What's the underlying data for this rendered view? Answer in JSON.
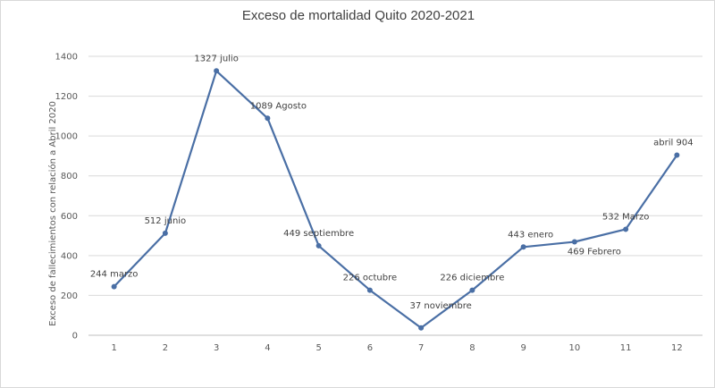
{
  "chart_data": {
    "type": "line",
    "title": "Exceso de mortalidad Quito 2020-2021",
    "xlabel": "",
    "ylabel": "Exceso de fallecimientos con relación a Abril 2020",
    "x": [
      1,
      2,
      3,
      4,
      5,
      6,
      7,
      8,
      9,
      10,
      11,
      12
    ],
    "ylim": [
      0,
      1400
    ],
    "yticks": [
      0,
      200,
      400,
      600,
      800,
      1000,
      1200,
      1400
    ],
    "grid": true,
    "legend": "none",
    "color": "#4a6fa5",
    "series": [
      {
        "values": [
          244,
          512,
          1327,
          1089,
          449,
          226,
          37,
          226,
          443,
          469,
          532,
          904
        ],
        "labels": [
          "244 marzo",
          "512  junio",
          "1327 julio",
          "1089 Agosto",
          "449 septiembre",
          "226 octubre",
          "37 noviembre",
          "226 diciembre",
          "443 enero",
          "469 Febrero",
          "532 Marzo",
          "abril 904"
        ]
      }
    ]
  }
}
